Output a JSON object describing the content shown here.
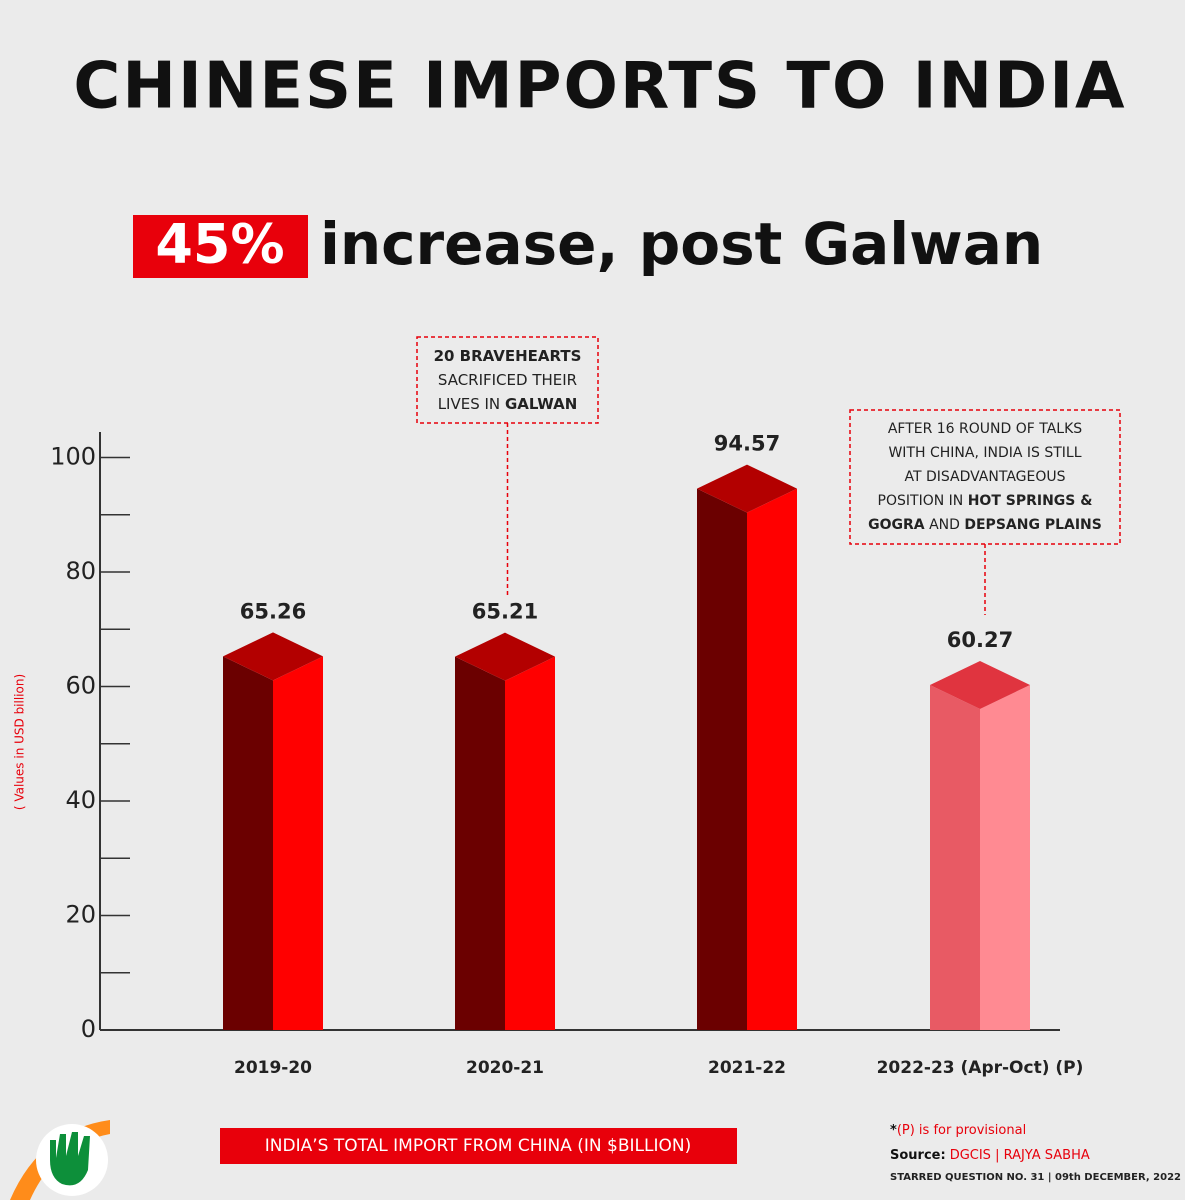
{
  "chart_data": {
    "type": "bar3d",
    "title": "CHINESE IMPORTS TO INDIA",
    "subtitle_highlight": "45%",
    "subtitle": "increase, post Galwan",
    "y_label": "( Values in USD billion)",
    "categories": [
      "2019-20",
      "2020-21",
      "2021-22",
      "2022-23 (Apr-Oct) (P)"
    ],
    "values": [
      65.26,
      65.21,
      94.57,
      60.27
    ],
    "colors": [
      "#ff0000",
      "#ff0000",
      "#ff0000",
      "#ff8a92"
    ],
    "ylim": [
      0,
      105
    ],
    "yticks": [
      0,
      20,
      40,
      60,
      80,
      100
    ],
    "minor_yticks": [
      10,
      30,
      50,
      70,
      90
    ],
    "annotations": [
      {
        "category": 1,
        "lines": [
          [
            {
              "text": "20 BRAVEHEARTS",
              "bold": true
            }
          ],
          [
            {
              "text": "SACRIFICED THEIR",
              "bold": false
            }
          ],
          [
            {
              "text": "LIVES IN ",
              "bold": false
            },
            {
              "text": "GALWAN",
              "bold": true
            }
          ]
        ]
      },
      {
        "category": 3,
        "lines": [
          [
            {
              "text": "AFTER 16 ROUND OF TALKS",
              "bold": false
            }
          ],
          [
            {
              "text": "WITH CHINA, INDIA IS STILL",
              "bold": false
            }
          ],
          [
            {
              "text": "AT DISADVANTAGEOUS",
              "bold": false
            }
          ],
          [
            {
              "text": "POSITION IN ",
              "bold": false
            },
            {
              "text": "HOT SPRINGS &",
              "bold": true
            }
          ],
          [
            {
              "text": "GOGRA",
              "bold": true
            },
            {
              "text": " AND ",
              "bold": false
            },
            {
              "text": "DEPSANG PLAINS",
              "bold": true
            }
          ]
        ]
      }
    ],
    "caption": "INDIA’S TOTAL IMPORT FROM CHINA (IN $BILLION)",
    "note_mark": "*",
    "note": "(P) is for provisional",
    "source_label": "Source:",
    "source": "DGCIS | RAJYA SABHA",
    "reference": "STARRED QUESTION NO. 31 | 09th DECEMBER, 2022"
  }
}
